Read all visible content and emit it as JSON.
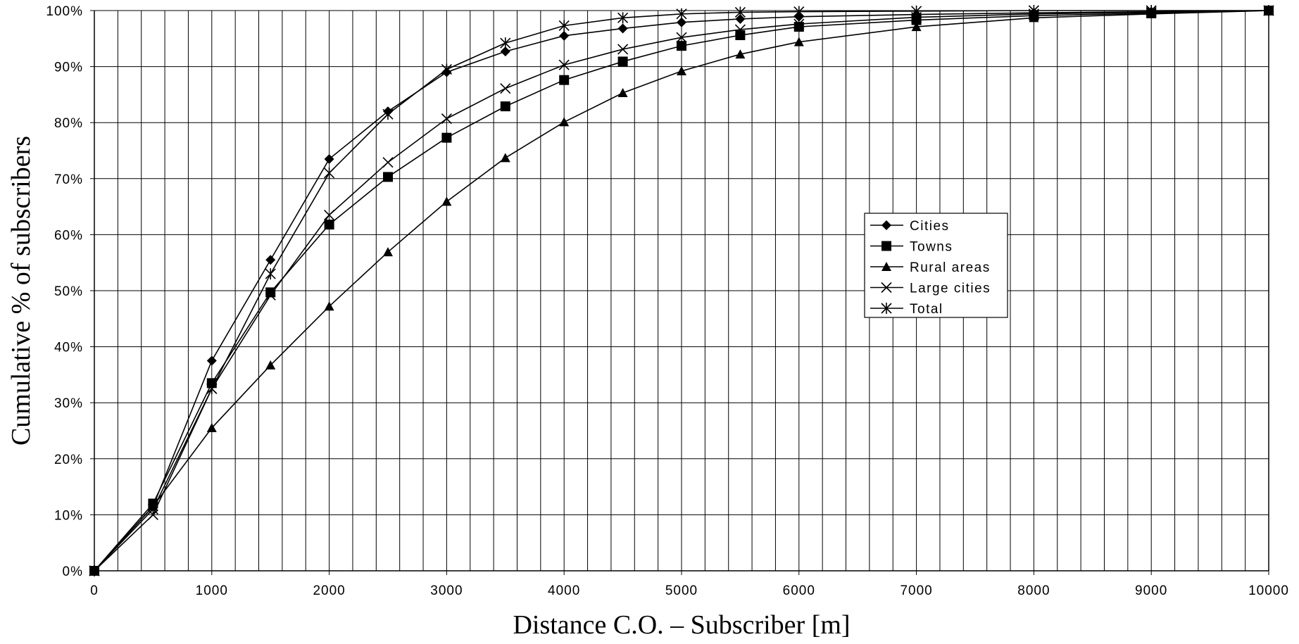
{
  "chart_data": {
    "type": "line",
    "title": "",
    "xlabel": "Distance C.O. – Subscriber [m]",
    "ylabel": "Cumulative % of subscribers",
    "xlim": [
      0,
      10000
    ],
    "ylim": [
      0,
      100
    ],
    "x_ticks": [
      0,
      1000,
      2000,
      3000,
      4000,
      5000,
      6000,
      7000,
      8000,
      9000,
      10000
    ],
    "y_ticks": [
      0,
      10,
      20,
      30,
      40,
      50,
      60,
      70,
      80,
      90,
      100
    ],
    "x_tick_labels": [
      "0",
      "1000",
      "2000",
      "3000",
      "4000",
      "5000",
      "6000",
      "7000",
      "8000",
      "9000",
      "10000"
    ],
    "y_tick_labels": [
      "0%",
      "10%",
      "20%",
      "30%",
      "40%",
      "50%",
      "60%",
      "70%",
      "80%",
      "90%",
      "100%"
    ],
    "minor_grid_step_x": 200,
    "grid": true,
    "legend_position": "right, mid-height",
    "line_color": "#000000",
    "series": [
      {
        "name": "Cities",
        "marker": "diamond",
        "x": [
          0,
          500,
          1000,
          1500,
          2000,
          2500,
          3000,
          3500,
          4000,
          4500,
          5000,
          5500,
          6000,
          7000,
          8000,
          9000,
          10000
        ],
        "values": [
          0,
          11.5,
          37.5,
          55.5,
          73.5,
          82,
          89,
          92.7,
          95.5,
          96.8,
          97.9,
          98.5,
          98.9,
          99.3,
          99.6,
          99.8,
          100
        ]
      },
      {
        "name": "Towns",
        "marker": "square",
        "x": [
          0,
          500,
          1000,
          1500,
          2000,
          2500,
          3000,
          3500,
          4000,
          4500,
          5000,
          5500,
          6000,
          7000,
          8000,
          9000,
          10000
        ],
        "values": [
          0,
          12,
          33.5,
          49.7,
          61.8,
          70.3,
          77.3,
          82.9,
          87.6,
          90.9,
          93.7,
          95.6,
          97.1,
          98.3,
          99.1,
          99.5,
          100
        ]
      },
      {
        "name": "Rural areas",
        "marker": "triangle",
        "x": [
          0,
          500,
          1000,
          1500,
          2000,
          2500,
          3000,
          3500,
          4000,
          4500,
          5000,
          5500,
          6000,
          7000,
          8000,
          9000,
          10000
        ],
        "values": [
          0,
          11.5,
          25.5,
          36.7,
          47.2,
          56.9,
          65.9,
          73.7,
          80.1,
          85.3,
          89.2,
          92.2,
          94.4,
          97.1,
          98.7,
          99.4,
          100
        ]
      },
      {
        "name": "Large cities",
        "marker": "x",
        "x": [
          0,
          500,
          1000,
          1500,
          2000,
          2500,
          3000,
          3500,
          4000,
          4500,
          5000,
          5500,
          6000,
          7000,
          8000,
          9000,
          10000
        ],
        "values": [
          0,
          10,
          32.5,
          49.2,
          63.5,
          72.9,
          80.7,
          86.1,
          90.3,
          93.1,
          95.2,
          96.6,
          97.6,
          98.8,
          99.4,
          99.7,
          100
        ]
      },
      {
        "name": "Total",
        "marker": "star",
        "x": [
          0,
          500,
          1000,
          1500,
          2000,
          2500,
          3000,
          3500,
          4000,
          4500,
          5000,
          5500,
          6000,
          7000,
          8000,
          9000,
          10000
        ],
        "values": [
          0,
          11,
          32.5,
          53,
          71,
          81.5,
          89.5,
          94.2,
          97.3,
          98.7,
          99.4,
          99.7,
          99.8,
          99.9,
          100,
          100,
          100
        ]
      }
    ]
  }
}
